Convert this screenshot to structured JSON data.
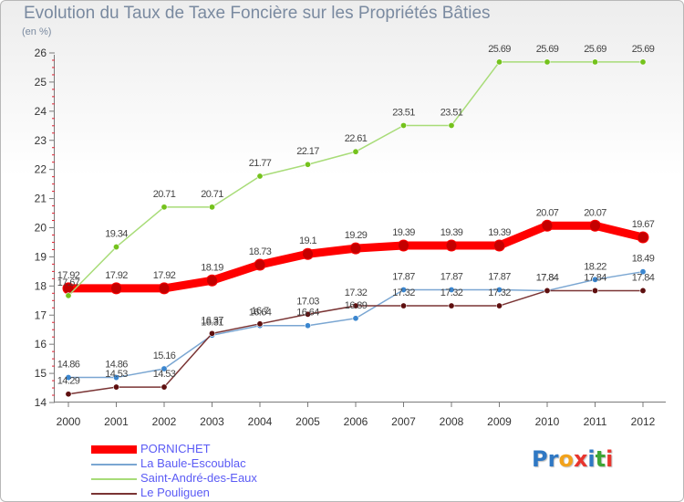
{
  "title": "Evolution du Taux de Taxe Foncière sur les Propriétés Bâties",
  "subtitle": "(en %)",
  "logo": {
    "letters": [
      "P",
      "r",
      "o",
      "x",
      "i",
      "t",
      "i"
    ],
    "colors": [
      "#2f78c4",
      "#2f78c4",
      "#f2a21b",
      "#e8352e",
      "#2f78c4",
      "#3fa535",
      "#e8352e"
    ]
  },
  "chart_data": {
    "type": "line",
    "x": [
      2000,
      2001,
      2002,
      2003,
      2004,
      2005,
      2006,
      2007,
      2008,
      2009,
      2010,
      2011,
      2012
    ],
    "ylim": [
      14,
      26
    ],
    "yticks": [
      14,
      15,
      16,
      17,
      18,
      19,
      20,
      21,
      22,
      23,
      24,
      25,
      26
    ],
    "grid": false,
    "legend_position": "bottom-left",
    "series": [
      {
        "name": "PORNICHET",
        "color": "#ff0000",
        "marker_color": "#c40000",
        "width": 9,
        "values": [
          17.92,
          17.92,
          17.92,
          18.19,
          18.73,
          19.1,
          19.29,
          19.39,
          19.39,
          19.39,
          20.07,
          20.07,
          19.67
        ],
        "labels": [
          "17.92",
          "17.92",
          "17.92",
          "18.19",
          "18.73",
          "19.1",
          "19.29",
          "19.39",
          "19.39",
          "19.39",
          "20.07",
          "20.07",
          "19.67"
        ]
      },
      {
        "name": "La Baule-Escoublac",
        "color": "#7aa6d2",
        "marker_color": "#3b86cf",
        "width": 1.5,
        "values": [
          14.86,
          14.86,
          15.16,
          16.31,
          16.64,
          16.64,
          16.89,
          17.87,
          17.87,
          17.87,
          17.84,
          18.22,
          18.49
        ],
        "labels": [
          "14.86",
          "14.86",
          "15.16",
          "16.31",
          "16.64",
          "16.64",
          "16.89",
          "17.87",
          "17.87",
          "17.87",
          "17.84",
          "18.22",
          "18.49"
        ]
      },
      {
        "name": "Saint-André-des-Eaux",
        "color": "#a8dc78",
        "marker_color": "#74c21c",
        "width": 1.5,
        "values": [
          17.67,
          19.34,
          20.71,
          20.71,
          21.77,
          22.17,
          22.61,
          23.51,
          23.51,
          25.69,
          25.69,
          25.69,
          25.69
        ],
        "labels": [
          "17.67",
          "19.34",
          "20.71",
          "20.71",
          "21.77",
          "22.17",
          "22.61",
          "23.51",
          "23.51",
          "25.69",
          "25.69",
          "25.69",
          "25.69"
        ]
      },
      {
        "name": "Le Pouliguen",
        "color": "#7a3434",
        "marker_color": "#5e0f0f",
        "width": 1.5,
        "values": [
          14.29,
          14.53,
          14.53,
          16.37,
          16.7,
          17.03,
          17.32,
          17.32,
          17.32,
          17.32,
          17.84,
          17.84,
          17.84
        ],
        "labels": [
          "14.29",
          "14.53",
          "14.53",
          "16.37",
          "16.7",
          "17.03",
          "17.32",
          "17.32",
          "17.32",
          "17.32",
          "17.84",
          "17.84",
          "17.84"
        ]
      }
    ]
  }
}
